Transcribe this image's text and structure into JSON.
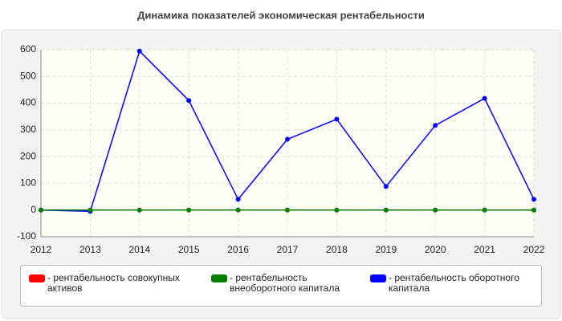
{
  "chart_data": {
    "type": "line",
    "title": "Динамика показателей экономическая рентабельности",
    "x": [
      2012,
      2013,
      2014,
      2015,
      2016,
      2017,
      2018,
      2019,
      2020,
      2021,
      2022
    ],
    "xlim": [
      2012,
      2022
    ],
    "xticks": [
      2012,
      2013,
      2014,
      2015,
      2016,
      2017,
      2018,
      2019,
      2020,
      2021,
      2022
    ],
    "ylim": [
      -100,
      600
    ],
    "yticks": [
      -100,
      0,
      100,
      200,
      300,
      400,
      500,
      600
    ],
    "grid": true,
    "series": [
      {
        "name": "- рентабельность совокупных активов",
        "color": "#ff0000",
        "values": [
          0,
          0,
          0,
          0,
          0,
          0,
          0,
          0,
          0,
          0,
          0
        ]
      },
      {
        "name": "- рентабельность внеоборотного капитала",
        "color": "#008000",
        "values": [
          0,
          0,
          0,
          0,
          0,
          0,
          0,
          0,
          0,
          0,
          0
        ]
      },
      {
        "name": "- рентабельность оборотного капитала",
        "color": "#0000ff",
        "values": [
          0,
          -5,
          595,
          410,
          40,
          265,
          340,
          88,
          317,
          418,
          40
        ]
      }
    ]
  }
}
